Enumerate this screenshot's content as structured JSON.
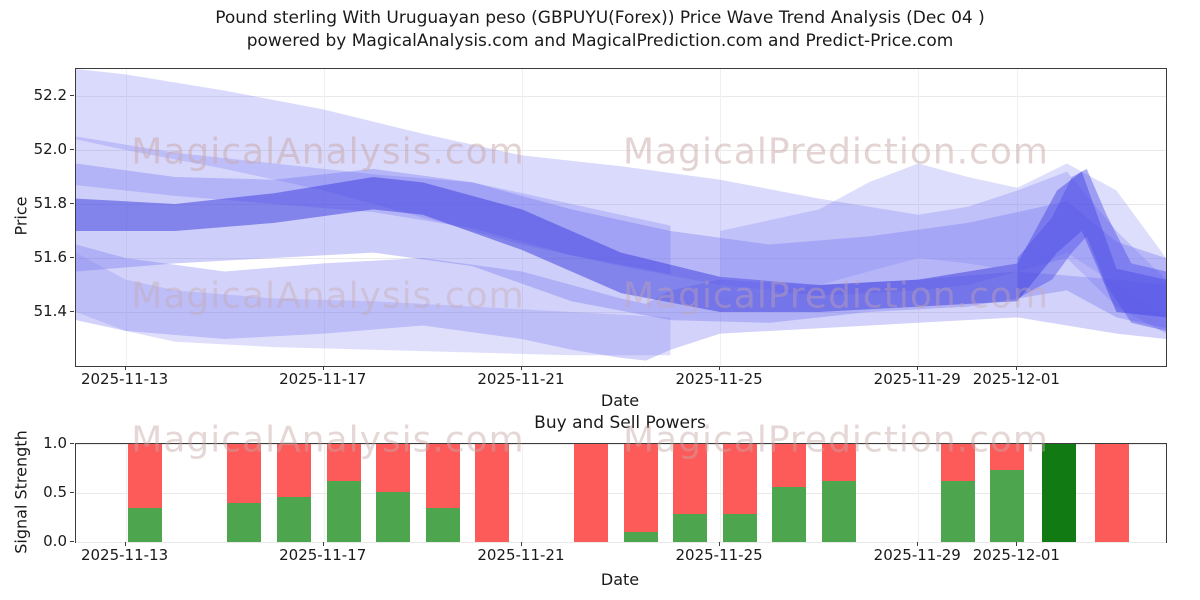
{
  "title": {
    "line1": "Pound sterling With Uruguayan peso (GBPUYU(Forex)) Price Wave Trend Analysis (Dec 04 )",
    "line2": "powered by MagicalAnalysis.com and MagicalPrediction.com and Predict-Price.com"
  },
  "watermarks": {
    "analysis": "MagicalAnalysis.com",
    "prediction": "MagicalPrediction.com",
    "color": "#c9a8a8"
  },
  "chart_data": [
    {
      "type": "area",
      "title": "",
      "xlabel": "Date",
      "ylabel": "Price",
      "x_unit": "days since 2025-11-12",
      "xlim_days": [
        0,
        22
      ],
      "ylim": [
        51.2,
        52.3
      ],
      "grid": true,
      "x_ticks": [
        {
          "day": 1,
          "label": "2025-11-13"
        },
        {
          "day": 5,
          "label": "2025-11-17"
        },
        {
          "day": 9,
          "label": "2025-11-21"
        },
        {
          "day": 13,
          "label": "2025-11-25"
        },
        {
          "day": 17,
          "label": "2025-11-29"
        },
        {
          "day": 19,
          "label": "2025-12-01"
        }
      ],
      "y_ticks": [
        {
          "value": 51.4,
          "label": "51.4"
        },
        {
          "value": 51.6,
          "label": "51.6"
        },
        {
          "value": 51.8,
          "label": "51.8"
        },
        {
          "value": 52.0,
          "label": "52.0"
        },
        {
          "value": 52.2,
          "label": "52.2"
        }
      ],
      "bands": [
        {
          "name": "upper-wide",
          "x": [
            0,
            1,
            3,
            5,
            7,
            9,
            11,
            13,
            15,
            17,
            18,
            19,
            20,
            21,
            22
          ],
          "upper": [
            52.3,
            52.28,
            52.22,
            52.15,
            52.06,
            51.98,
            51.94,
            51.89,
            51.82,
            51.76,
            51.79,
            51.85,
            51.92,
            51.7,
            51.52
          ],
          "lower": [
            52.04,
            52.0,
            51.93,
            51.85,
            51.75,
            51.65,
            51.57,
            51.5,
            51.46,
            51.48,
            51.5,
            51.55,
            51.6,
            51.42,
            51.32
          ],
          "color": "#7b7bf5",
          "opacity": 0.28
        },
        {
          "name": "upper-second",
          "x": [
            0,
            2,
            4,
            6,
            8,
            10,
            12
          ],
          "upper": [
            52.05,
            51.99,
            51.95,
            51.91,
            51.88,
            51.8,
            51.72
          ],
          "lower": [
            51.87,
            51.83,
            51.8,
            51.77,
            51.71,
            51.61,
            51.54
          ],
          "color": "#7b7bf5",
          "opacity": 0.3
        },
        {
          "name": "middle-mass",
          "x": [
            0,
            2,
            4,
            6,
            8,
            10,
            12,
            14,
            16,
            18,
            20,
            21,
            22
          ],
          "upper": [
            51.95,
            51.9,
            51.89,
            51.93,
            51.88,
            51.78,
            51.7,
            51.65,
            51.68,
            51.73,
            51.81,
            51.66,
            51.6
          ],
          "lower": [
            51.55,
            51.58,
            51.6,
            51.62,
            51.57,
            51.44,
            51.37,
            51.36,
            51.4,
            51.42,
            51.48,
            51.38,
            51.34
          ],
          "color": "#6b6bf0",
          "opacity": 0.33
        },
        {
          "name": "lower-dip",
          "x": [
            0,
            1,
            3,
            5,
            7,
            9,
            10,
            11,
            11.5,
            12,
            13,
            15,
            17,
            19,
            21,
            22
          ],
          "upper": [
            51.65,
            51.6,
            51.55,
            51.58,
            51.6,
            51.55,
            51.5,
            51.45,
            51.43,
            51.48,
            51.52,
            51.5,
            51.52,
            51.55,
            51.52,
            51.5
          ],
          "lower": [
            51.37,
            51.33,
            51.3,
            51.32,
            51.35,
            51.3,
            51.26,
            51.23,
            51.22,
            51.26,
            51.32,
            51.34,
            51.36,
            51.38,
            51.32,
            51.3
          ],
          "color": "#6b6bf0",
          "opacity": 0.3
        },
        {
          "name": "bottom-left",
          "x": [
            0,
            1,
            2,
            4,
            6,
            8,
            10,
            12
          ],
          "upper": [
            51.62,
            51.52,
            51.48,
            51.45,
            51.44,
            51.42,
            51.4,
            51.38
          ],
          "lower": [
            51.4,
            51.33,
            51.29,
            51.27,
            51.26,
            51.25,
            51.24,
            51.24
          ],
          "color": "#8080f2",
          "opacity": 0.25
        },
        {
          "name": "core-dark",
          "x": [
            0,
            2,
            4,
            6,
            7,
            9,
            11,
            13,
            15,
            17,
            19,
            19.8,
            20.3,
            21,
            22
          ],
          "upper": [
            51.82,
            51.8,
            51.84,
            51.9,
            51.88,
            51.78,
            51.62,
            51.53,
            51.5,
            51.52,
            51.58,
            51.85,
            51.92,
            51.56,
            51.52
          ],
          "lower": [
            51.7,
            51.7,
            51.73,
            51.78,
            51.76,
            51.63,
            51.47,
            51.4,
            51.4,
            51.42,
            51.44,
            51.62,
            51.7,
            51.4,
            51.38
          ],
          "color": "#4646e0",
          "opacity": 0.55
        },
        {
          "name": "right-rise",
          "x": [
            13,
            15,
            16,
            17,
            18,
            19,
            20,
            21,
            22
          ],
          "upper": [
            51.7,
            51.78,
            51.88,
            51.95,
            51.9,
            51.86,
            51.95,
            51.85,
            51.6
          ],
          "lower": [
            51.45,
            51.5,
            51.55,
            51.6,
            51.58,
            51.55,
            51.62,
            51.5,
            51.38
          ],
          "color": "#7b7bf5",
          "opacity": 0.26
        },
        {
          "name": "right-spike",
          "x": [
            19,
            19.7,
            20.1,
            20.4,
            20.8,
            21.3,
            22
          ],
          "upper": [
            51.6,
            51.75,
            51.9,
            51.93,
            51.76,
            51.58,
            51.55
          ],
          "lower": [
            51.45,
            51.52,
            51.62,
            51.68,
            51.5,
            51.36,
            51.33
          ],
          "color": "#5050e8",
          "opacity": 0.45
        }
      ]
    },
    {
      "type": "bar",
      "title": "Buy and Sell Powers",
      "xlabel": "Date",
      "ylabel": "Signal Strength",
      "x_unit": "days since 2025-11-12",
      "xlim_days": [
        0,
        22
      ],
      "ylim": [
        0,
        1
      ],
      "grid": true,
      "x_ticks": [
        {
          "day": 1,
          "label": "2025-11-13"
        },
        {
          "day": 5,
          "label": "2025-11-17"
        },
        {
          "day": 9,
          "label": "2025-11-21"
        },
        {
          "day": 13,
          "label": "2025-11-25"
        },
        {
          "day": 17,
          "label": "2025-11-29"
        },
        {
          "day": 19,
          "label": "2025-12-01"
        }
      ],
      "y_ticks": [
        {
          "value": 0.0,
          "label": "0.0"
        },
        {
          "value": 0.5,
          "label": "0.5"
        },
        {
          "value": 1.0,
          "label": "1.0"
        }
      ],
      "colors": {
        "sell": "#fd5a5a",
        "buy": "#4da64d",
        "strong_buy": "#127a12"
      },
      "bars": [
        {
          "day": 1.4,
          "sell": 1.0,
          "buy": 0.35,
          "strong": false
        },
        {
          "day": 3.4,
          "sell": 1.0,
          "buy": 0.4,
          "strong": false
        },
        {
          "day": 4.4,
          "sell": 1.0,
          "buy": 0.46,
          "strong": false
        },
        {
          "day": 5.4,
          "sell": 1.0,
          "buy": 0.62,
          "strong": false
        },
        {
          "day": 6.4,
          "sell": 1.0,
          "buy": 0.51,
          "strong": false
        },
        {
          "day": 7.4,
          "sell": 1.0,
          "buy": 0.35,
          "strong": false
        },
        {
          "day": 8.4,
          "sell": 1.0,
          "buy": 0.0,
          "strong": false
        },
        {
          "day": 10.4,
          "sell": 1.0,
          "buy": 0.0,
          "strong": false
        },
        {
          "day": 11.4,
          "sell": 1.0,
          "buy": 0.1,
          "strong": false
        },
        {
          "day": 12.4,
          "sell": 1.0,
          "buy": 0.29,
          "strong": false
        },
        {
          "day": 13.4,
          "sell": 1.0,
          "buy": 0.29,
          "strong": false
        },
        {
          "day": 14.4,
          "sell": 1.0,
          "buy": 0.56,
          "strong": false
        },
        {
          "day": 15.4,
          "sell": 1.0,
          "buy": 0.62,
          "strong": false
        },
        {
          "day": 17.8,
          "sell": 1.0,
          "buy": 0.62,
          "strong": false
        },
        {
          "day": 18.8,
          "sell": 1.0,
          "buy": 0.73,
          "strong": false
        },
        {
          "day": 19.85,
          "sell": 0.0,
          "buy": 1.0,
          "strong": true
        },
        {
          "day": 20.9,
          "sell": 1.0,
          "buy": 0.0,
          "strong": false
        }
      ]
    }
  ]
}
